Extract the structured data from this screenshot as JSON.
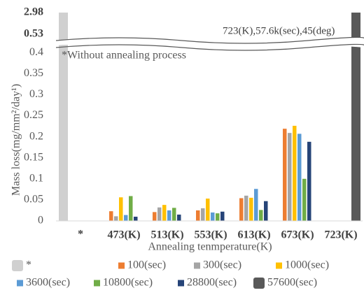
{
  "chart_data": {
    "type": "bar",
    "y_label": "Mass loss(mg/mm²/day¹)",
    "x_label": "Annealing tenmperature(K)",
    "annotations": [
      "*Without annealing process",
      "723(K),57.6k(sec),45(deg)"
    ],
    "categories": [
      "*",
      "473(K)",
      "513(K)",
      "553(K)",
      "613(K)",
      "673(K)",
      "723(K)"
    ],
    "ylim": [
      0,
      2.98
    ],
    "yticks": [
      0,
      0.05,
      0.1,
      0.15,
      0.2,
      0.25,
      0.3,
      0.35,
      0.4,
      0.53,
      2.98
    ],
    "axis_break": true,
    "series": [
      {
        "name": "*",
        "color": "#d0d0d0",
        "values": [
          2.98,
          null,
          null,
          null,
          null,
          null,
          null
        ]
      },
      {
        "name": "100(sec)",
        "color": "#ed7d31",
        "values": [
          null,
          0.023,
          0.021,
          0.025,
          0.054,
          0.219,
          null
        ]
      },
      {
        "name": "300(sec)",
        "color": "#a5a5a5",
        "values": [
          null,
          0.011,
          0.032,
          0.03,
          0.06,
          0.209,
          null
        ]
      },
      {
        "name": "1000(sec)",
        "color": "#ffc000",
        "values": [
          null,
          0.056,
          0.038,
          0.053,
          0.055,
          0.226,
          null
        ]
      },
      {
        "name": "3600(sec)",
        "color": "#5b9bd5",
        "values": [
          null,
          0.014,
          0.025,
          0.02,
          0.076,
          0.207,
          null
        ]
      },
      {
        "name": "10800(sec)",
        "color": "#70ad47",
        "values": [
          null,
          0.059,
          0.031,
          0.018,
          0.026,
          0.1,
          null
        ]
      },
      {
        "name": "28800(sec)",
        "color": "#264478",
        "values": [
          null,
          0.01,
          0.015,
          0.022,
          0.047,
          0.188,
          null
        ]
      },
      {
        "name": "57600(sec)",
        "color": "#595959",
        "values": [
          null,
          null,
          null,
          null,
          null,
          null,
          2.98
        ]
      }
    ]
  }
}
